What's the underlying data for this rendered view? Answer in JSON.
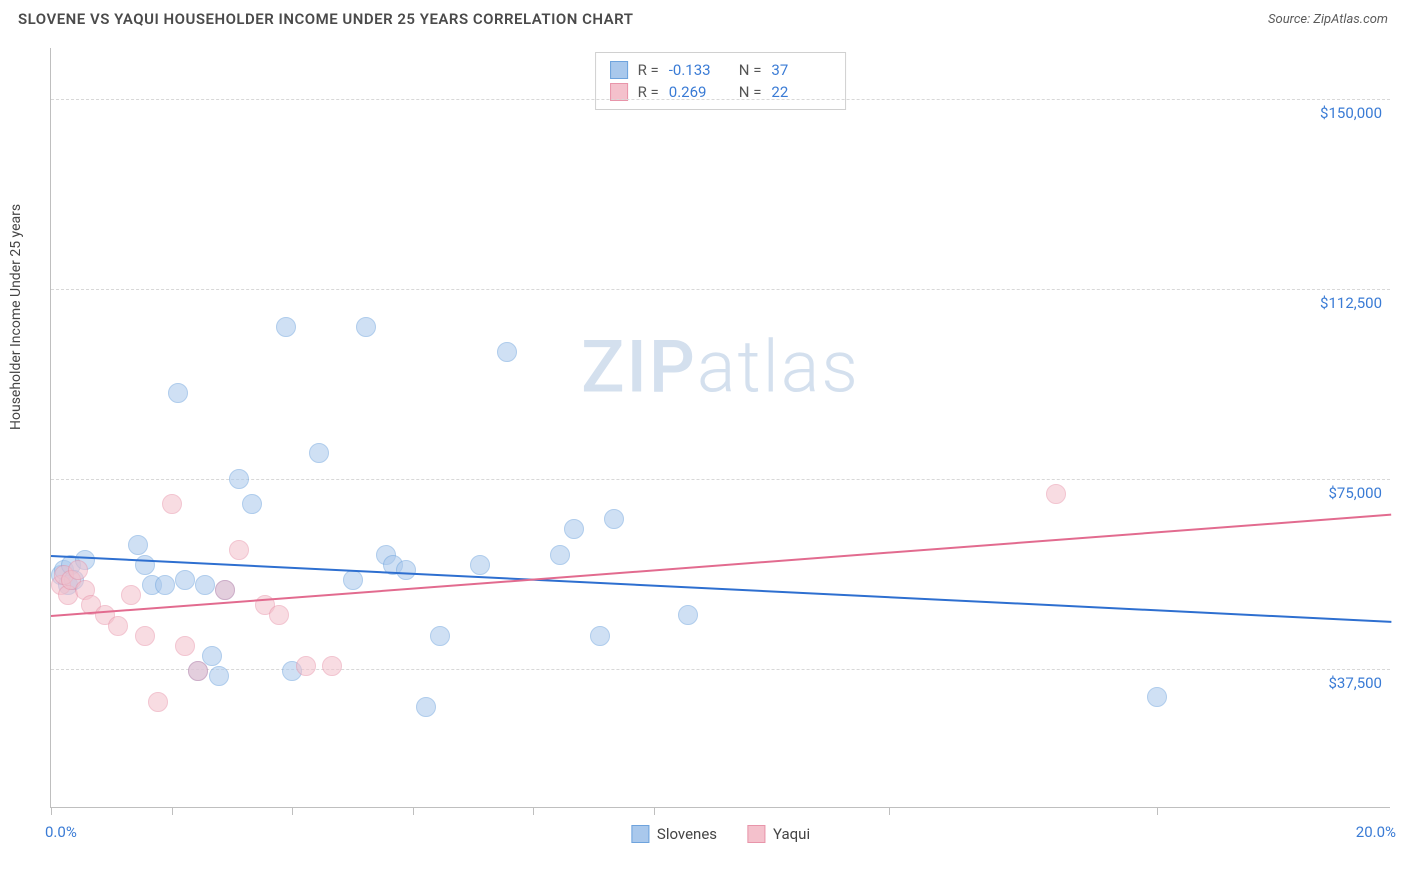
{
  "header": {
    "title": "SLOVENE VS YAQUI HOUSEHOLDER INCOME UNDER 25 YEARS CORRELATION CHART",
    "source": "Source: ZipAtlas.com"
  },
  "watermark": {
    "part1": "ZIP",
    "part2": "atlas"
  },
  "chart": {
    "type": "scatter",
    "ylabel": "Householder Income Under 25 years",
    "xlim": [
      0,
      20
    ],
    "ylim": [
      10000,
      160000
    ],
    "x_axis_labels": {
      "min": "0.0%",
      "max": "20.0%"
    },
    "y_gridlines": [
      37500,
      75000,
      112500,
      150000
    ],
    "y_tick_labels": [
      "$37,500",
      "$75,000",
      "$112,500",
      "$150,000"
    ],
    "x_ticks": [
      0,
      1.8,
      3.6,
      5.4,
      7.2,
      9.0,
      12.5,
      16.5
    ],
    "background_color": "#ffffff",
    "grid_color": "#d8d8d8",
    "point_radius": 10,
    "point_opacity": 0.55,
    "series": [
      {
        "name": "Slovenes",
        "color_fill": "#a9c8ec",
        "color_stroke": "#6ea3dd",
        "r_value": "-0.133",
        "n_value": "37",
        "trend": {
          "x1": 0,
          "y1": 60000,
          "x2": 20,
          "y2": 47000,
          "color": "#2e6fd0"
        },
        "points": [
          [
            0.15,
            56000
          ],
          [
            0.2,
            57000
          ],
          [
            0.25,
            54000
          ],
          [
            0.3,
            58000
          ],
          [
            0.35,
            55000
          ],
          [
            0.5,
            59000
          ],
          [
            1.3,
            62000
          ],
          [
            1.4,
            58000
          ],
          [
            1.5,
            54000
          ],
          [
            1.9,
            92000
          ],
          [
            2.0,
            55000
          ],
          [
            2.3,
            54000
          ],
          [
            2.4,
            40000
          ],
          [
            2.5,
            36000
          ],
          [
            2.6,
            53000
          ],
          [
            2.8,
            75000
          ],
          [
            3.0,
            70000
          ],
          [
            3.5,
            105000
          ],
          [
            3.6,
            37000
          ],
          [
            4.0,
            80000
          ],
          [
            4.5,
            55000
          ],
          [
            4.7,
            105000
          ],
          [
            5.0,
            60000
          ],
          [
            5.1,
            58000
          ],
          [
            5.3,
            57000
          ],
          [
            5.6,
            30000
          ],
          [
            5.8,
            44000
          ],
          [
            6.4,
            58000
          ],
          [
            6.8,
            100000
          ],
          [
            7.6,
            60000
          ],
          [
            7.8,
            65000
          ],
          [
            8.2,
            44000
          ],
          [
            8.4,
            67000
          ],
          [
            9.5,
            48000
          ],
          [
            16.5,
            32000
          ],
          [
            2.2,
            37000
          ],
          [
            1.7,
            54000
          ]
        ]
      },
      {
        "name": "Yaqui",
        "color_fill": "#f4c1cc",
        "color_stroke": "#e895aa",
        "r_value": "0.269",
        "n_value": "22",
        "trend": {
          "x1": 0,
          "y1": 48000,
          "x2": 20,
          "y2": 68000,
          "color": "#e26b8f"
        },
        "points": [
          [
            0.15,
            54000
          ],
          [
            0.2,
            56000
          ],
          [
            0.25,
            52000
          ],
          [
            0.3,
            55000
          ],
          [
            0.4,
            57000
          ],
          [
            0.5,
            53000
          ],
          [
            0.6,
            50000
          ],
          [
            0.8,
            48000
          ],
          [
            1.0,
            46000
          ],
          [
            1.2,
            52000
          ],
          [
            1.4,
            44000
          ],
          [
            1.6,
            31000
          ],
          [
            1.8,
            70000
          ],
          [
            2.0,
            42000
          ],
          [
            2.2,
            37000
          ],
          [
            2.6,
            53000
          ],
          [
            2.8,
            61000
          ],
          [
            3.2,
            50000
          ],
          [
            3.4,
            48000
          ],
          [
            3.8,
            38000
          ],
          [
            4.2,
            38000
          ],
          [
            15.0,
            72000
          ]
        ]
      }
    ],
    "legend_bottom": [
      "Slovenes",
      "Yaqui"
    ],
    "stats_legend": {
      "r_label": "R =",
      "n_label": "N ="
    }
  }
}
